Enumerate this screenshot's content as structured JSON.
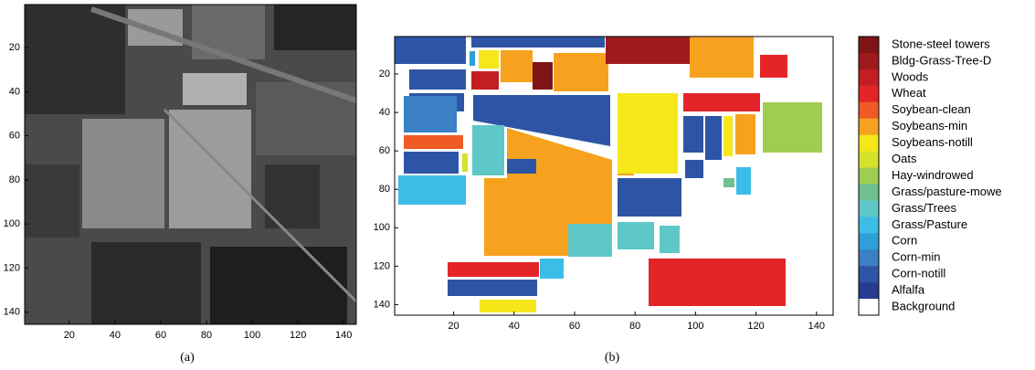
{
  "panel_a": {
    "caption": "(a)",
    "xlim": [
      0.5,
      145.5
    ],
    "ylim": [
      0.5,
      145.5
    ],
    "xticks": [
      20,
      40,
      60,
      80,
      100,
      120,
      140
    ],
    "yticks": [
      20,
      40,
      60,
      80,
      100,
      120,
      140
    ]
  },
  "panel_b": {
    "caption": "(b)",
    "xlim": [
      0.5,
      145.5
    ],
    "ylim": [
      0.5,
      145.5
    ],
    "xticks": [
      20,
      40,
      60,
      80,
      100,
      120,
      140
    ],
    "yticks": [
      20,
      40,
      60,
      80,
      100,
      120,
      140
    ],
    "legend": [
      {
        "label": "Stone-steel towers",
        "color": "#7f1416"
      },
      {
        "label": "Bldg-Grass-Tree-D",
        "color": "#9e1a1d"
      },
      {
        "label": "Woods",
        "color": "#c31e24"
      },
      {
        "label": "Wheat",
        "color": "#e42528"
      },
      {
        "label": "Soybean-clean",
        "color": "#ef5b24"
      },
      {
        "label": "Soybeans-min",
        "color": "#f7a21e"
      },
      {
        "label": "Soybeans-notill",
        "color": "#f6e71a"
      },
      {
        "label": "Oats",
        "color": "#d6e22a"
      },
      {
        "label": "Hay-windrowed",
        "color": "#9fcd50"
      },
      {
        "label": "Grass/pasture-mowe",
        "color": "#6dc18f"
      },
      {
        "label": "Grass/Trees",
        "color": "#5ec8c8"
      },
      {
        "label": "Grass/Pasture",
        "color": "#3cbde8"
      },
      {
        "label": "Corn",
        "color": "#2f9fd8"
      },
      {
        "label": "Corn-min",
        "color": "#3b7fc4"
      },
      {
        "label": "Corn-notill",
        "color": "#2e55a5"
      },
      {
        "label": "Alfalfa",
        "color": "#283c8f"
      },
      {
        "label": "Background",
        "color": "#ffffff"
      }
    ]
  }
}
